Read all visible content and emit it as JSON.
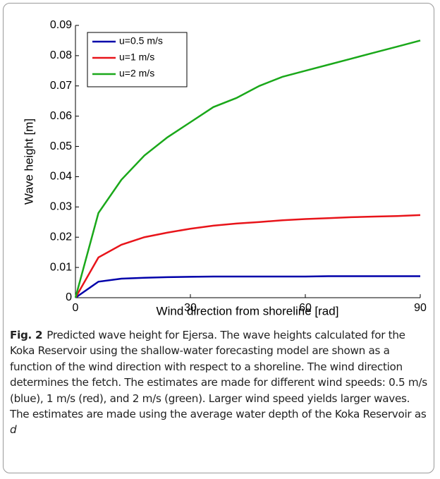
{
  "chart_data": {
    "type": "line",
    "x_label": "Wind direction from shoreline [rad]",
    "y_label": "Wave height [m]",
    "x": [
      0,
      6,
      12,
      18,
      24,
      30,
      36,
      42,
      48,
      54,
      60,
      66,
      72,
      78,
      84,
      90
    ],
    "series": [
      {
        "name": "u=0.5 m/s",
        "color": "#0000aa",
        "values": [
          0,
          0.0053,
          0.0063,
          0.0066,
          0.0068,
          0.0069,
          0.007,
          0.007,
          0.007,
          0.007,
          0.007,
          0.0071,
          0.0071,
          0.0071,
          0.0071,
          0.0071
        ]
      },
      {
        "name": "u=1 m/s",
        "color": "#e8141a",
        "values": [
          0,
          0.0133,
          0.0175,
          0.02,
          0.0215,
          0.0228,
          0.0238,
          0.0245,
          0.025,
          0.0256,
          0.026,
          0.0263,
          0.0266,
          0.0268,
          0.027,
          0.0273
        ]
      },
      {
        "name": "u=2 m/s",
        "color": "#1aa81a",
        "values": [
          0,
          0.028,
          0.039,
          0.047,
          0.053,
          0.058,
          0.063,
          0.066,
          0.07,
          0.073,
          0.075,
          0.077,
          0.079,
          0.081,
          0.083,
          0.085
        ]
      }
    ],
    "xlim": [
      0,
      90
    ],
    "xticks": [
      0,
      30,
      60,
      90
    ],
    "ylim": [
      0,
      0.09
    ],
    "yticks": [
      0,
      0.01,
      0.02,
      0.03,
      0.04,
      0.05,
      0.06,
      0.07,
      0.08,
      0.09
    ],
    "legend": "upper left"
  },
  "caption": {
    "label": "Fig. 2",
    "text": "Predicted wave height for Ejersa. The wave heights calculated for the Koka Reservoir using the shallow-water forecasting model are shown as a function of the wind direction with respect to a shoreline. The wind direction determines the fetch. The estimates are made for different wind speeds: 0.5 m/s (blue), 1 m/s (red), and 2 m/s (green). Larger wind speed yields larger waves. The estimates are made using the average water depth of the Koka Reservoir as",
    "variable": "d"
  }
}
